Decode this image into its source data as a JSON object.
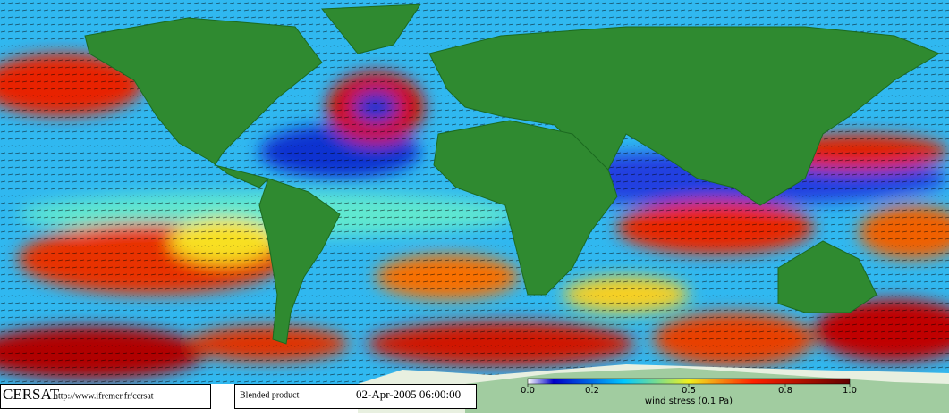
{
  "map": {
    "logo": "CERSAT",
    "url": "http://www.ifremer.fr/cersat",
    "product": "Blended product",
    "timestamp": "02-Apr-2005 06:00:00",
    "colorbar": {
      "label": "wind stress (0.1 Pa)",
      "range": [
        0,
        1
      ],
      "ticks": [
        {
          "value": 0,
          "label": "0.0"
        },
        {
          "value": 0.2,
          "label": "0.2"
        },
        {
          "value": 0.5,
          "label": "0.5"
        },
        {
          "value": 0.8,
          "label": "0.8"
        },
        {
          "value": 1,
          "label": "1.0"
        }
      ]
    }
  }
}
